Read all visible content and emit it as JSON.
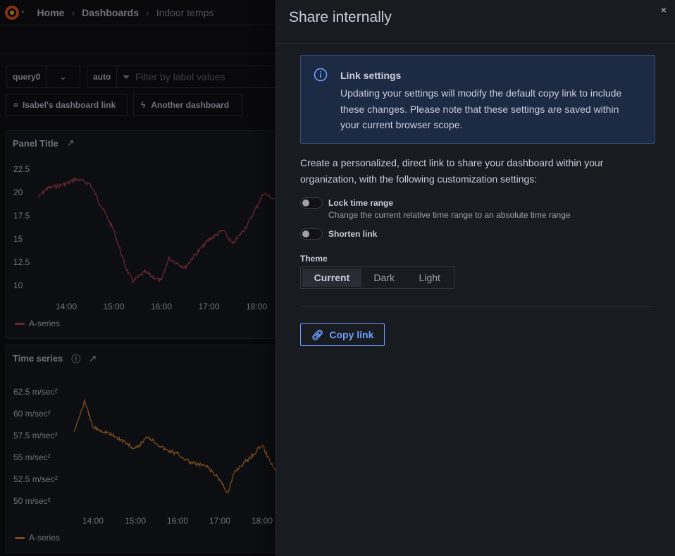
{
  "breadcrumb": [
    "Home",
    "Dashboards",
    "Indoor temps"
  ],
  "controls": {
    "query_value": "query0",
    "interval": "auto",
    "filter_placeholder": "Filter by label values",
    "link1": "Isabel's dashboard link",
    "link2": "Another dashboard"
  },
  "panels": [
    {
      "title": "Panel Title",
      "legend": "A-series",
      "color": "#b8475a",
      "y_ticks": [
        "22.5",
        "20",
        "17.5",
        "15",
        "12.5",
        "10"
      ],
      "x_ticks": [
        "14:00",
        "15:00",
        "16:00",
        "17:00",
        "18:00"
      ],
      "chart_data": {
        "type": "line",
        "x_hours": [
          13.4,
          13.6,
          14,
          14.2,
          14.5,
          14.7,
          15,
          15.25,
          15.4,
          15.65,
          16,
          16.15,
          16.5,
          16.65,
          17,
          17.3,
          17.5,
          17.8,
          18.15,
          18.5,
          18.65
        ],
        "values": [
          19.5,
          20.5,
          21,
          21.5,
          21,
          19,
          16,
          12,
          10.5,
          11.5,
          10.5,
          13,
          12,
          13,
          15,
          16,
          14.5,
          16.5,
          20,
          19,
          18.5
        ],
        "ylim": [
          10,
          22.5
        ]
      }
    },
    {
      "title": "Time series",
      "legend": "A-series",
      "color": "#d98b3a",
      "y_ticks": [
        "62.5 m/sec²",
        "60 m/sec²",
        "57.5 m/sec²",
        "55 m/sec²",
        "52.5 m/sec²",
        "50 m/sec²"
      ],
      "x_ticks": [
        "14:00",
        "15:00",
        "16:00",
        "17:00",
        "18:00"
      ],
      "chart_data": {
        "type": "line",
        "x_hours": [
          13.55,
          13.8,
          14,
          14.3,
          14.7,
          15,
          15.3,
          15.7,
          16,
          16.3,
          16.7,
          17,
          17.2,
          17.35,
          17.7,
          18,
          18.15,
          18.33
        ],
        "values": [
          58,
          61.5,
          58.5,
          58,
          57,
          56,
          57.5,
          56,
          55.5,
          54.5,
          54,
          52.5,
          51,
          53.5,
          55,
          56.5,
          55,
          53.5
        ],
        "ylim": [
          50,
          62.5
        ]
      }
    }
  ],
  "drawer": {
    "title": "Share internally",
    "close": "×",
    "info_title": "Link settings",
    "info_body": "Updating your settings will modify the default copy link to include these changes. Please note that these settings are saved within your current browser scope.",
    "description": "Create a personalized, direct link to share your dashboard within your organization, with the following customization settings:",
    "lock_label": "Lock time range",
    "lock_desc": "Change the current relative time range to an absolute time range",
    "lock_on": false,
    "shorten_label": "Shorten link",
    "shorten_on": false,
    "theme_label": "Theme",
    "theme_options": [
      "Current",
      "Dark",
      "Light"
    ],
    "theme_selected": "Current",
    "copy_label": "Copy link"
  }
}
